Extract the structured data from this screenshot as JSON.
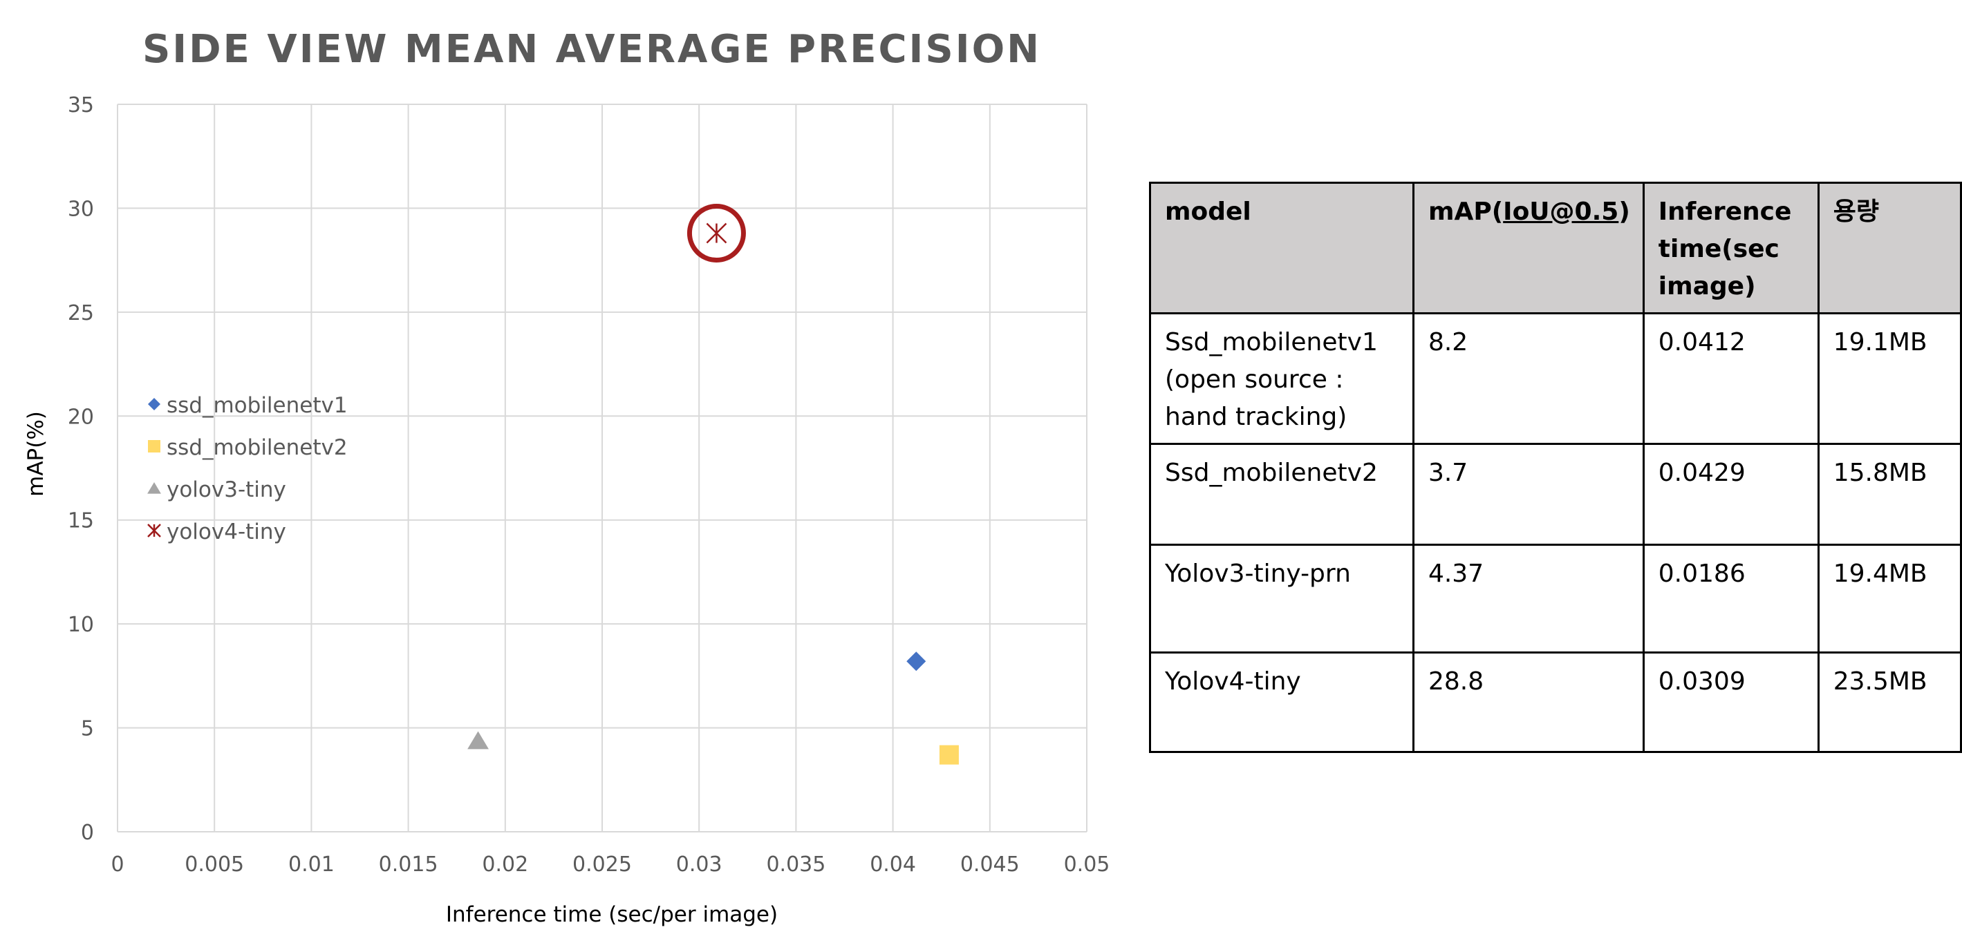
{
  "chart_data": {
    "type": "scatter",
    "title": "SIDE VIEW MEAN AVERAGE PRECISION",
    "xlabel": "Inference time (sec/per image)",
    "ylabel": "mAP(%)",
    "xlim": [
      0,
      0.05
    ],
    "ylim": [
      0,
      35
    ],
    "xticks": [
      "0",
      "0.005",
      "0.01",
      "0.015",
      "0.02",
      "0.025",
      "0.03",
      "0.035",
      "0.04",
      "0.045",
      "0.05"
    ],
    "yticks": [
      "0",
      "5",
      "10",
      "15",
      "20",
      "25",
      "30",
      "35"
    ],
    "grid": true,
    "legend_position": "left",
    "series": [
      {
        "name": "ssd_mobilenetv1",
        "marker": "diamond",
        "color": "#4472c4",
        "x": 0.0412,
        "y": 8.2
      },
      {
        "name": "ssd_mobilenetv2",
        "marker": "square",
        "color": "#ffd966",
        "x": 0.0429,
        "y": 3.7
      },
      {
        "name": "yolov3-tiny",
        "marker": "triangle",
        "color": "#a5a5a5",
        "x": 0.0186,
        "y": 4.37
      },
      {
        "name": "yolov4-tiny",
        "marker": "star",
        "color": "#9e1b1b",
        "x": 0.0309,
        "y": 28.8
      }
    ],
    "annotation": {
      "type": "circle",
      "color": "#a81e1e",
      "target_series": "yolov4-tiny"
    }
  },
  "table": {
    "headers": [
      "model",
      "mAP(IoU@0.5)",
      "Inference time(sec image)",
      "용량"
    ],
    "header_parts": {
      "map_prefix": "mAP(",
      "map_underlined": "IoU@0.5",
      "map_suffix": ")"
    },
    "rows": [
      [
        "Ssd_mobilenetv1 (open source : hand tracking)",
        "8.2",
        "0.0412",
        "19.1MB"
      ],
      [
        "Ssd_mobilenetv2",
        "3.7",
        "0.0429",
        "15.8MB"
      ],
      [
        "Yolov3-tiny-prn",
        "4.37",
        "0.0186",
        "19.4MB"
      ],
      [
        "Yolov4-tiny",
        "28.8",
        "0.0309",
        "23.5MB"
      ]
    ]
  }
}
